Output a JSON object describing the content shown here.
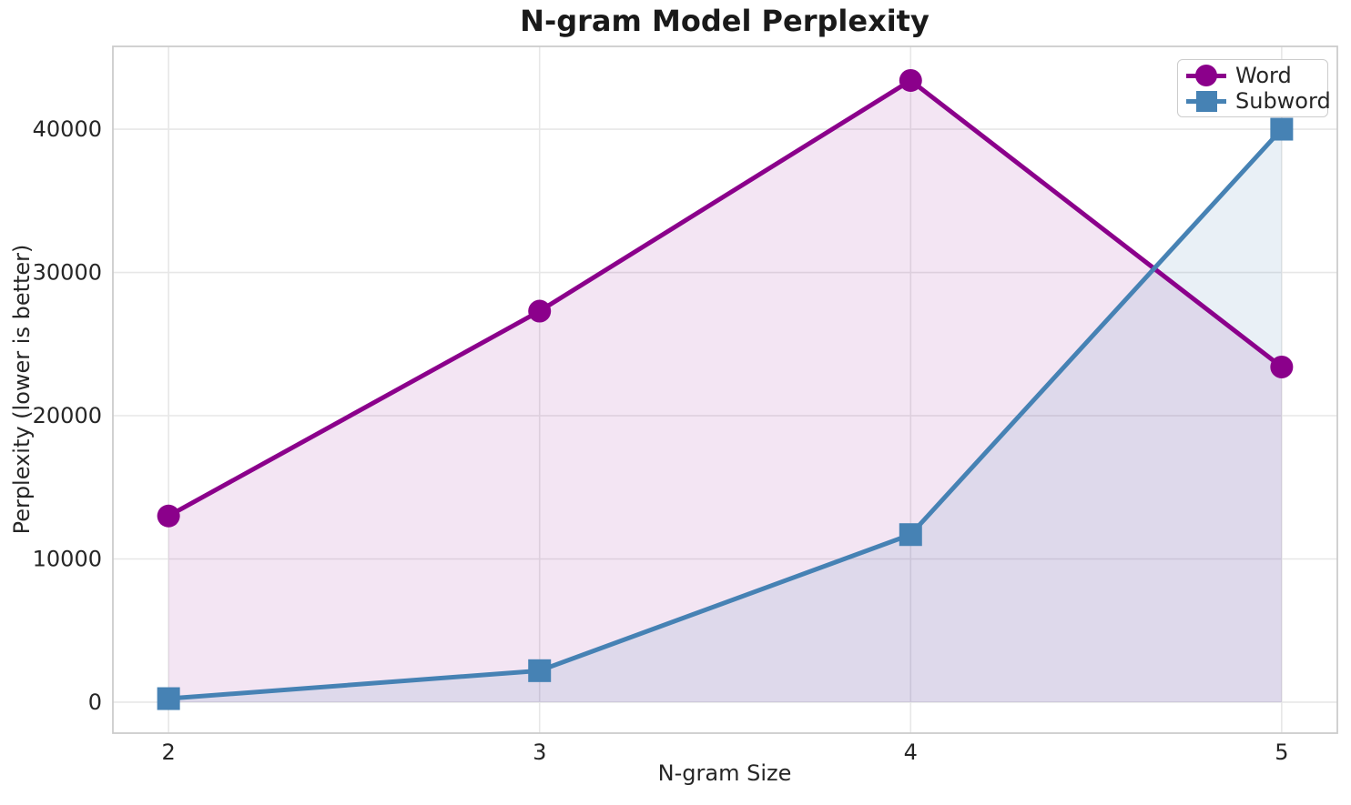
{
  "chart_data": {
    "type": "line",
    "title": "N-gram Model Perplexity",
    "xlabel": "N-gram Size",
    "ylabel": "Perplexity (lower is better)",
    "x": [
      2,
      3,
      4,
      5
    ],
    "series": [
      {
        "name": "Word",
        "color": "#8B008B",
        "marker": "circle",
        "fill_alpha": 0.1,
        "values": [
          13000,
          27300,
          43400,
          23400
        ]
      },
      {
        "name": "Subword",
        "color": "#4682B4",
        "marker": "square",
        "fill_alpha": 0.12,
        "values": [
          250,
          2200,
          11700,
          40000
        ]
      }
    ],
    "xticks": [
      2,
      3,
      4,
      5
    ],
    "yticks": [
      0,
      10000,
      20000,
      30000,
      40000
    ],
    "xtick_labels": [
      "2",
      "3",
      "4",
      "5"
    ],
    "ytick_labels": [
      "0",
      "10000",
      "20000",
      "30000",
      "40000"
    ],
    "xlim": [
      1.85,
      5.15
    ],
    "ylim": [
      -2160,
      45780
    ],
    "grid": true,
    "area_fill_to": 0,
    "legend_position": "upper right",
    "colors": {
      "background": "#ffffff",
      "gridline": "#e7e7e7",
      "spine": "#cccccc",
      "tick_text": "#262626",
      "title_text": "#1a1a1a"
    }
  }
}
